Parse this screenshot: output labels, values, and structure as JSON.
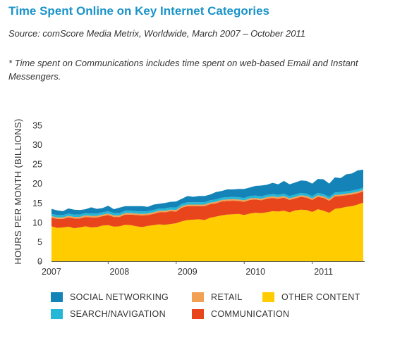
{
  "header": {
    "title": "Time Spent Online on Key Internet Categories",
    "source": "Source: comScore Media Metrix, Worldwide, March 2007 – October 2011",
    "note": "* Time spent on Communications includes time spent on web-based Email and Instant Messengers."
  },
  "chart_data": {
    "type": "area",
    "stacked": true,
    "ylabel": "HOURS PER MONTH (BILLIONS)",
    "xlabel": "",
    "ylim": [
      0,
      35
    ],
    "yticks": [
      0,
      5,
      10,
      15,
      20,
      25,
      30,
      35
    ],
    "xlim": [
      "2007-03",
      "2011-10"
    ],
    "xticks": [
      "2007",
      "2008",
      "2009",
      "2010",
      "2011"
    ],
    "grid": false,
    "legend_position": "bottom",
    "x": [
      "2007-03",
      "2007-04",
      "2007-05",
      "2007-06",
      "2007-07",
      "2007-08",
      "2007-09",
      "2007-10",
      "2007-11",
      "2007-12",
      "2008-01",
      "2008-02",
      "2008-03",
      "2008-04",
      "2008-05",
      "2008-06",
      "2008-07",
      "2008-08",
      "2008-09",
      "2008-10",
      "2008-11",
      "2008-12",
      "2009-01",
      "2009-02",
      "2009-03",
      "2009-04",
      "2009-05",
      "2009-06",
      "2009-07",
      "2009-08",
      "2009-09",
      "2009-10",
      "2009-11",
      "2009-12",
      "2010-01",
      "2010-02",
      "2010-03",
      "2010-04",
      "2010-05",
      "2010-06",
      "2010-07",
      "2010-08",
      "2010-09",
      "2010-10",
      "2010-11",
      "2010-12",
      "2011-01",
      "2011-02",
      "2011-03",
      "2011-04",
      "2011-05",
      "2011-06",
      "2011-07",
      "2011-08",
      "2011-09",
      "2011-10"
    ],
    "series": [
      {
        "name": "OTHER CONTENT",
        "color": "#ffcc00",
        "values": [
          9.0,
          8.6,
          8.7,
          8.9,
          8.5,
          8.7,
          9.0,
          8.7,
          8.8,
          9.2,
          9.3,
          8.9,
          9.0,
          9.4,
          9.3,
          9.0,
          8.8,
          9.1,
          9.3,
          9.5,
          9.4,
          9.6,
          9.8,
          10.3,
          10.6,
          10.7,
          10.8,
          10.6,
          11.2,
          11.5,
          11.8,
          12.0,
          12.1,
          12.2,
          11.9,
          12.3,
          12.5,
          12.4,
          12.6,
          12.9,
          12.8,
          13.0,
          12.6,
          13.1,
          13.3,
          13.2,
          12.7,
          13.4,
          13.0,
          12.5,
          13.5,
          13.7,
          14.0,
          14.2,
          14.6,
          15.1
        ]
      },
      {
        "name": "COMMUNICATION",
        "color": "#e8451c",
        "values": [
          2.2,
          2.3,
          2.2,
          2.4,
          2.5,
          2.3,
          2.4,
          2.6,
          2.5,
          2.4,
          2.6,
          2.5,
          2.4,
          2.6,
          2.7,
          2.9,
          3.0,
          2.8,
          2.9,
          3.1,
          3.2,
          3.3,
          3.0,
          3.5,
          3.6,
          3.5,
          3.4,
          3.6,
          3.5,
          3.4,
          3.6,
          3.5,
          3.5,
          3.3,
          3.4,
          3.5,
          3.4,
          3.3,
          3.5,
          3.4,
          3.3,
          3.4,
          3.2,
          3.1,
          3.3,
          3.2,
          3.1,
          3.2,
          3.3,
          3.1,
          3.2,
          3.1,
          3.0,
          3.0,
          2.9,
          2.9
        ]
      },
      {
        "name": "RETAIL",
        "color": "#f2a154",
        "values": [
          0.4,
          0.4,
          0.4,
          0.4,
          0.4,
          0.4,
          0.4,
          0.4,
          0.4,
          0.4,
          0.4,
          0.4,
          0.4,
          0.4,
          0.4,
          0.4,
          0.4,
          0.4,
          0.4,
          0.4,
          0.4,
          0.4,
          0.4,
          0.4,
          0.4,
          0.4,
          0.4,
          0.4,
          0.4,
          0.4,
          0.4,
          0.4,
          0.4,
          0.4,
          0.4,
          0.4,
          0.4,
          0.4,
          0.4,
          0.4,
          0.4,
          0.4,
          0.4,
          0.4,
          0.4,
          0.4,
          0.4,
          0.4,
          0.4,
          0.4,
          0.4,
          0.4,
          0.4,
          0.4,
          0.4,
          0.4
        ]
      },
      {
        "name": "SEARCH/NAVIGATION",
        "color": "#27b7d6",
        "values": [
          0.6,
          0.6,
          0.6,
          0.6,
          0.6,
          0.6,
          0.6,
          0.6,
          0.6,
          0.6,
          0.6,
          0.6,
          0.6,
          0.6,
          0.6,
          0.6,
          0.6,
          0.6,
          0.6,
          0.6,
          0.6,
          0.6,
          0.6,
          0.6,
          0.6,
          0.6,
          0.6,
          0.6,
          0.6,
          0.6,
          0.6,
          0.6,
          0.6,
          0.6,
          0.6,
          0.6,
          0.6,
          0.6,
          0.6,
          0.6,
          0.6,
          0.6,
          0.6,
          0.6,
          0.6,
          0.6,
          0.6,
          0.6,
          0.6,
          0.6,
          0.6,
          0.6,
          0.6,
          0.6,
          0.6,
          0.6
        ]
      },
      {
        "name": "SOCIAL NETWORKING",
        "color": "#1483b8",
        "values": [
          1.3,
          1.2,
          1.0,
          1.3,
          1.3,
          1.2,
          1.0,
          1.6,
          1.2,
          1.1,
          1.4,
          1.0,
          1.4,
          1.2,
          1.2,
          1.3,
          1.4,
          1.1,
          1.4,
          1.2,
          1.4,
          1.4,
          1.6,
          1.3,
          1.6,
          1.4,
          1.6,
          1.6,
          1.5,
          1.9,
          1.7,
          2.0,
          1.9,
          2.1,
          2.3,
          2.2,
          2.5,
          2.8,
          2.6,
          2.9,
          2.7,
          3.3,
          3.0,
          3.1,
          3.2,
          3.3,
          3.2,
          3.6,
          3.8,
          3.4,
          3.9,
          3.6,
          4.4,
          4.4,
          4.9,
          4.6
        ]
      }
    ]
  },
  "legend": {
    "items": [
      {
        "label": "SOCIAL NETWORKING",
        "color": "#1483b8"
      },
      {
        "label": "RETAIL",
        "color": "#f2a154"
      },
      {
        "label": "OTHER CONTENT",
        "color": "#ffcc00"
      },
      {
        "label": "SEARCH/NAVIGATION",
        "color": "#27b7d6"
      },
      {
        "label": "COMMUNICATION",
        "color": "#e8451c"
      }
    ]
  }
}
